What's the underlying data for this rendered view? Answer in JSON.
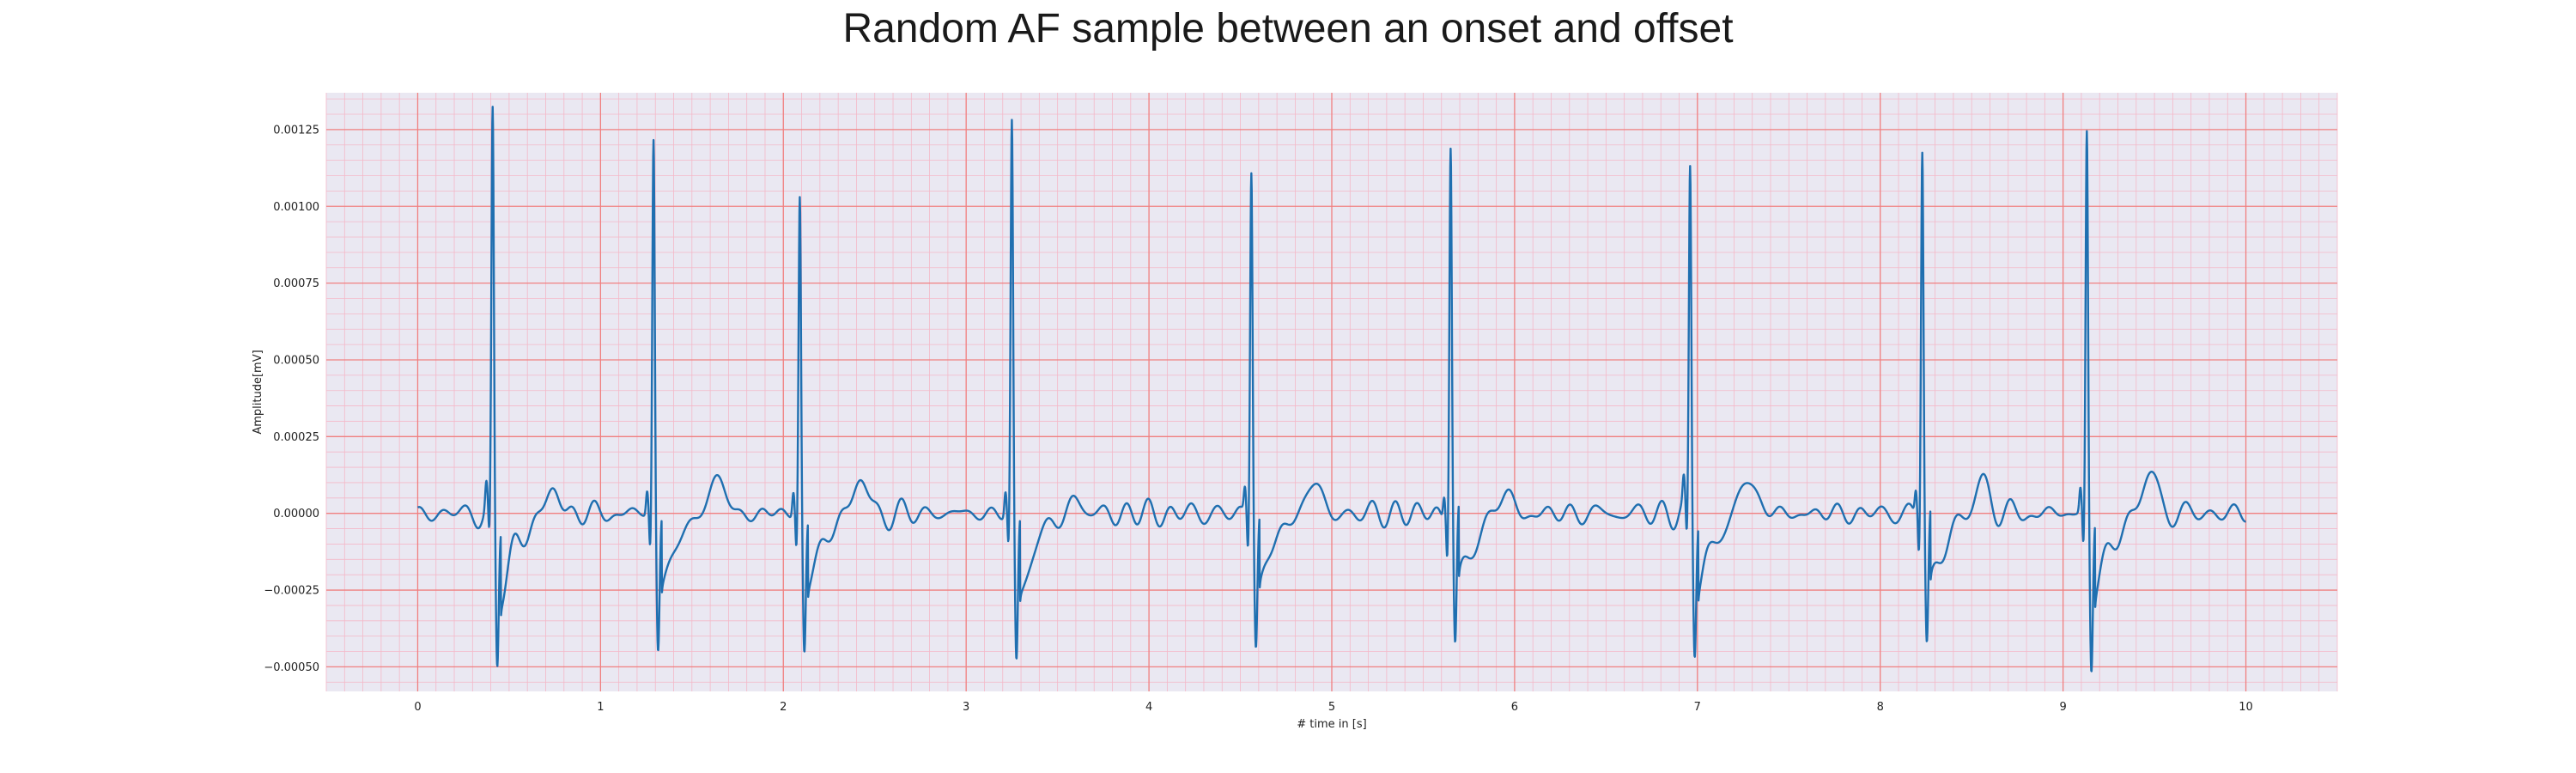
{
  "chart_data": {
    "type": "line",
    "title": "Random AF sample between an onset and offset",
    "xlabel": "# time in [s]",
    "ylabel": "Amplitude[mV]",
    "xlim": [
      -0.5,
      10.5
    ],
    "ylim": [
      -0.00058,
      0.00137
    ],
    "xticks": [
      0,
      1,
      2,
      3,
      4,
      5,
      6,
      7,
      8,
      9,
      10
    ],
    "xtick_labels": [
      "0",
      "1",
      "2",
      "3",
      "4",
      "5",
      "6",
      "7",
      "8",
      "9",
      "10"
    ],
    "yticks": [
      -0.0005,
      -0.00025,
      0.0,
      0.00025,
      0.0005,
      0.00075,
      0.001,
      0.00125
    ],
    "ytick_labels": [
      "−0.00050",
      "−0.00025",
      "0.00000",
      "0.00025",
      "0.00050",
      "0.00075",
      "0.00100",
      "0.00125"
    ],
    "grid": {
      "major": true,
      "minor": true,
      "major_color": "#f08080",
      "minor_color": "#f4b8c8"
    },
    "background": "#eae8f2",
    "series": [
      {
        "color": "#1f6fb0",
        "sample_rate_hz": 100,
        "duration_s": 10,
        "r_peaks": [
          {
            "t": 0.41,
            "r": 0.00128,
            "s": -0.00049
          },
          {
            "t": 1.29,
            "r": 0.00122,
            "s": -0.00045
          },
          {
            "t": 2.09,
            "r": 0.00103,
            "s": -0.00045
          },
          {
            "t": 3.25,
            "r": 0.00126,
            "s": -0.0005
          },
          {
            "t": 4.56,
            "r": 0.00113,
            "s": -0.00043
          },
          {
            "t": 5.65,
            "r": 0.00122,
            "s": -0.00044
          },
          {
            "t": 6.96,
            "r": 0.00112,
            "s": -0.00044
          },
          {
            "t": 8.23,
            "r": 0.0012,
            "s": -0.00043
          },
          {
            "t": 9.13,
            "r": 0.00125,
            "s": -0.0005
          }
        ],
        "t_waves": [
          {
            "t": 0.74,
            "a": 8e-05
          },
          {
            "t": 1.63,
            "a": 0.00013
          },
          {
            "t": 2.41,
            "a": 0.00012
          },
          {
            "t": 3.59,
            "a": 5e-05
          },
          {
            "t": 4.89,
            "a": 0.00011
          },
          {
            "t": 5.94,
            "a": 8e-05
          },
          {
            "t": 7.28,
            "a": 0.00013
          },
          {
            "t": 8.55,
            "a": 0.00011
          },
          {
            "t": 9.47,
            "a": 0.00014
          }
        ]
      }
    ]
  }
}
